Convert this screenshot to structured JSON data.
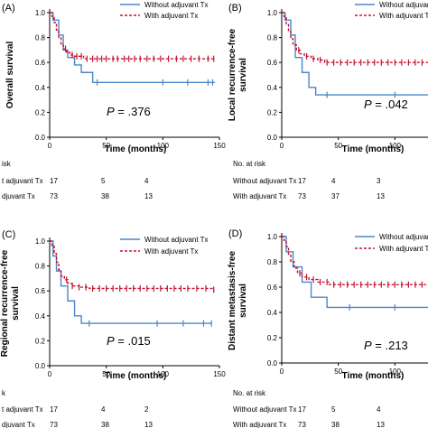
{
  "chart_data": [
    {
      "type": "line",
      "panel_label": "(A)",
      "ylabel": "Overall survival",
      "xlabel": "Time (months)",
      "p_prefix": "P",
      "p_value": "= .376",
      "xlim": [
        0,
        150
      ],
      "ylim": [
        0,
        1.0
      ],
      "x_ticks": [
        "0",
        "50",
        "100",
        "150"
      ],
      "y_ticks": [
        "0.0",
        "0.2",
        "0.4",
        "0.6",
        "0.8",
        "1.0"
      ],
      "series": [
        {
          "name": "Without adjuvant Tx",
          "color": "#4a86c8",
          "style": "solid",
          "x": [
            0,
            3,
            8,
            12,
            16,
            22,
            28,
            38,
            146
          ],
          "y": [
            1.0,
            0.94,
            0.82,
            0.7,
            0.64,
            0.58,
            0.52,
            0.44,
            0.44
          ],
          "censored_x": [
            42,
            100,
            122,
            140,
            144
          ]
        },
        {
          "name": "With adjuvant Tx",
          "color": "#c8102e",
          "style": "dashed",
          "x": [
            0,
            2,
            4,
            6,
            8,
            10,
            12,
            15,
            18,
            22,
            30,
            145
          ],
          "y": [
            1.0,
            0.97,
            0.92,
            0.86,
            0.8,
            0.75,
            0.71,
            0.68,
            0.66,
            0.65,
            0.63,
            0.63
          ],
          "censored_x": [
            14,
            20,
            24,
            28,
            33,
            38,
            42,
            46,
            50,
            56,
            60,
            66,
            70,
            75,
            80,
            86,
            92,
            98,
            105,
            112,
            118,
            125,
            132,
            140,
            145
          ]
        }
      ],
      "risk_table": {
        "header": "No. at risk",
        "header_shown": "isk",
        "rows": [
          {
            "label": "Without adjuvant Tx",
            "label_shown": "t adjuvant Tx",
            "counts": [
              "17",
              "5",
              "4"
            ]
          },
          {
            "label": "With adjuvant Tx",
            "label_shown": "djuvant Tx",
            "counts": [
              "73",
              "38",
              "13"
            ]
          }
        ]
      }
    },
    {
      "type": "line",
      "panel_label": "(B)",
      "ylabel": "Local recurrence-free survival",
      "ylabel_lines": [
        "Local recurrence-free",
        "survival"
      ],
      "xlabel": "Time (months)",
      "p_prefix": "P",
      "p_value": "= .042",
      "xlim": [
        0,
        150
      ],
      "ylim": [
        0,
        1.0
      ],
      "x_ticks": [
        "0",
        "50",
        "100"
      ],
      "y_ticks": [
        "0.0",
        "0.2",
        "0.4",
        "0.6",
        "0.8",
        "1.0"
      ],
      "series": [
        {
          "name": "Without adjuvant Tx",
          "color": "#4a86c8",
          "style": "solid",
          "x": [
            0,
            3,
            8,
            12,
            18,
            24,
            30,
            150
          ],
          "y": [
            1.0,
            0.94,
            0.82,
            0.64,
            0.52,
            0.4,
            0.34,
            0.34
          ],
          "censored_x": [
            40,
            100,
            145
          ]
        },
        {
          "name": "With adjuvant Tx",
          "color": "#c8102e",
          "style": "dashed",
          "x": [
            0,
            2,
            4,
            6,
            8,
            10,
            13,
            16,
            20,
            26,
            32,
            38,
            150
          ],
          "y": [
            1.0,
            0.97,
            0.91,
            0.85,
            0.79,
            0.74,
            0.7,
            0.67,
            0.65,
            0.63,
            0.62,
            0.6,
            0.6
          ],
          "censored_x": [
            15,
            22,
            28,
            34,
            40,
            46,
            52,
            58,
            64,
            70,
            76,
            82,
            88,
            94,
            100,
            106,
            112,
            118,
            124,
            130,
            138,
            145
          ]
        }
      ],
      "risk_table": {
        "header": "No. at risk",
        "rows": [
          {
            "label": "Without adjuvant Tx",
            "counts": [
              "17",
              "4",
              "3"
            ]
          },
          {
            "label": "With adjuvant Tx",
            "counts": [
              "73",
              "37",
              "13"
            ]
          }
        ]
      }
    },
    {
      "type": "line",
      "panel_label": "(C)",
      "ylabel": "Regional recurrence-free survival",
      "ylabel_lines": [
        "Regional recurrence-free",
        "survival"
      ],
      "xlabel": "Time (months)",
      "p_prefix": "P",
      "p_value": "= .015",
      "xlim": [
        0,
        150
      ],
      "ylim": [
        0,
        1.0
      ],
      "x_ticks": [
        "0",
        "50",
        "100",
        "150"
      ],
      "y_ticks": [
        "0.0",
        "0.2",
        "0.4",
        "0.6",
        "0.8",
        "1.0"
      ],
      "series": [
        {
          "name": "Without adjuvant Tx",
          "color": "#4a86c8",
          "style": "solid",
          "x": [
            0,
            3,
            6,
            10,
            16,
            22,
            28,
            143
          ],
          "y": [
            1.0,
            0.88,
            0.76,
            0.64,
            0.52,
            0.4,
            0.34,
            0.34
          ],
          "censored_x": [
            35,
            95,
            118,
            136,
            143
          ]
        },
        {
          "name": "With adjuvant Tx",
          "color": "#c8102e",
          "style": "dashed",
          "x": [
            0,
            2,
            4,
            6,
            8,
            10,
            13,
            16,
            20,
            26,
            35,
            145
          ],
          "y": [
            1.0,
            0.96,
            0.9,
            0.83,
            0.77,
            0.72,
            0.69,
            0.66,
            0.64,
            0.63,
            0.62,
            0.61
          ],
          "censored_x": [
            15,
            20,
            26,
            32,
            38,
            44,
            50,
            56,
            62,
            68,
            74,
            80,
            86,
            92,
            98,
            104,
            110,
            116,
            122,
            130,
            138,
            145
          ]
        }
      ],
      "risk_table": {
        "header": "No. at risk",
        "header_shown": "k",
        "rows": [
          {
            "label": "Without adjuvant Tx",
            "label_shown": "t adjuvant Tx",
            "counts": [
              "17",
              "4",
              "2"
            ]
          },
          {
            "label": "With adjuvant Tx",
            "label_shown": "djuvant Tx",
            "counts": [
              "73",
              "38",
              "13"
            ]
          }
        ]
      }
    },
    {
      "type": "line",
      "panel_label": "(D)",
      "ylabel": "Distant metastasis-free survival",
      "ylabel_lines": [
        "Distant metastasis-free",
        "survival"
      ],
      "xlabel": "Time (months)",
      "p_prefix": "P",
      "p_value": "= .213",
      "xlim": [
        0,
        150
      ],
      "ylim": [
        0,
        1.0
      ],
      "x_ticks": [
        "0",
        "50",
        "100"
      ],
      "y_ticks": [
        "0.0",
        "0.2",
        "0.4",
        "0.6",
        "0.8",
        "1.0"
      ],
      "series": [
        {
          "name": "Without adjuvant Tx",
          "color": "#4a86c8",
          "style": "solid",
          "x": [
            0,
            4,
            10,
            18,
            26,
            40,
            150
          ],
          "y": [
            1.0,
            0.88,
            0.76,
            0.64,
            0.52,
            0.44,
            0.44
          ],
          "censored_x": [
            60,
            100,
            140
          ]
        },
        {
          "name": "With adjuvant Tx",
          "color": "#c8102e",
          "style": "dashed",
          "x": [
            0,
            2,
            4,
            6,
            8,
            11,
            14,
            18,
            24,
            32,
            42,
            150
          ],
          "y": [
            1.0,
            0.97,
            0.92,
            0.86,
            0.8,
            0.75,
            0.71,
            0.68,
            0.66,
            0.64,
            0.62,
            0.62
          ],
          "censored_x": [
            16,
            22,
            28,
            34,
            40,
            46,
            52,
            58,
            64,
            70,
            76,
            82,
            88,
            94,
            100,
            106,
            112,
            118,
            124,
            130,
            138,
            146
          ]
        }
      ],
      "risk_table": {
        "header": "No. at risk",
        "rows": [
          {
            "label": "Without adjuvant Tx",
            "counts": [
              "17",
              "5",
              "4"
            ]
          },
          {
            "label": "With adjuvant Tx",
            "counts": [
              "73",
              "38",
              "13"
            ]
          }
        ]
      }
    }
  ]
}
